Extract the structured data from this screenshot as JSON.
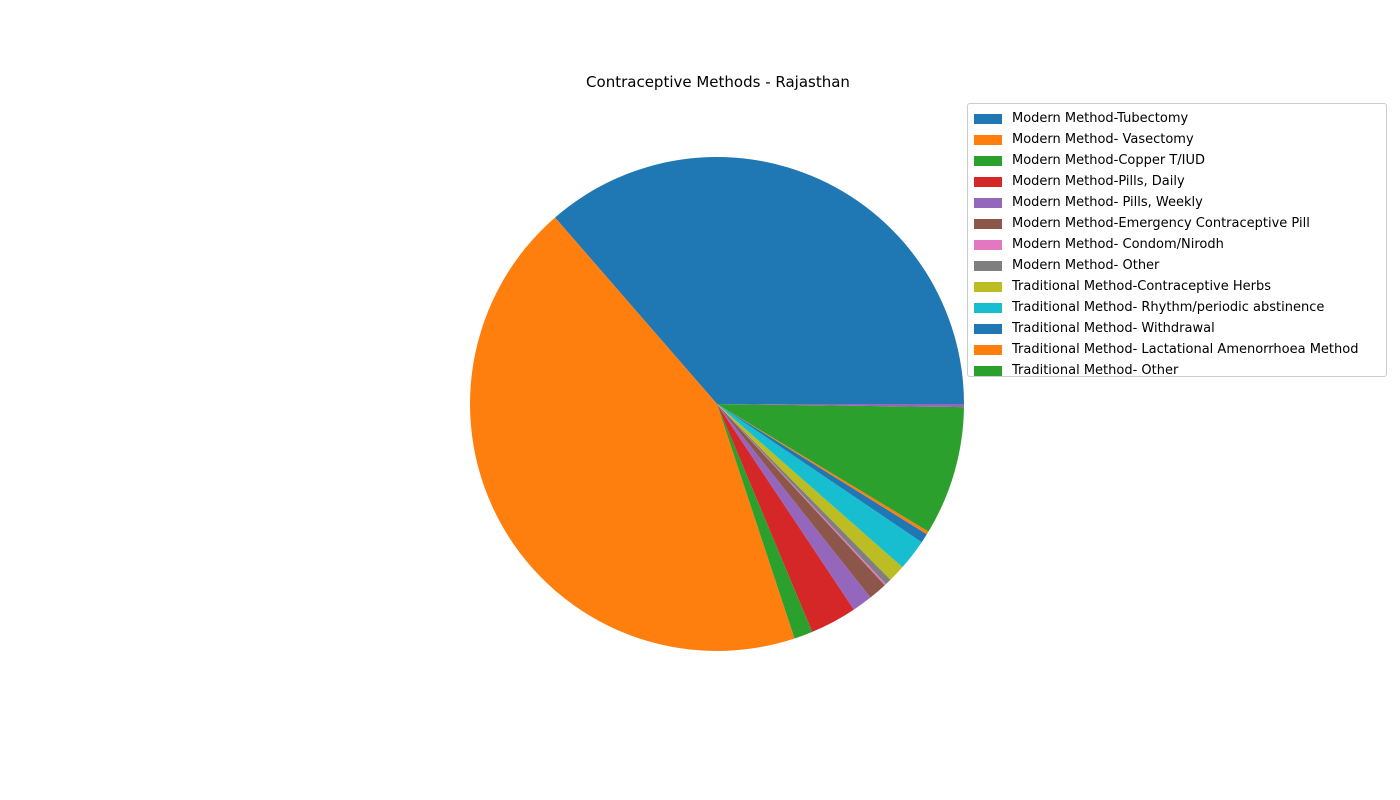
{
  "chart_data": {
    "type": "pie",
    "title": "Contraceptive Methods - Rajasthan",
    "legend_position": "top-right",
    "start_angle_deg": 0,
    "direction": "counterclockwise",
    "slices": [
      {
        "label": "Modern Method-Tubectomy",
        "value": 35.8,
        "color": "#1f77b4"
      },
      {
        "label": "Modern Method- Vasectomy",
        "value": 43.0,
        "color": "#ff7f0e"
      },
      {
        "label": "Modern Method-Copper T/IUD",
        "value": 1.2,
        "color": "#2ca02c"
      },
      {
        "label": "Modern Method-Pills, Daily",
        "value": 3.0,
        "color": "#d62728"
      },
      {
        "label": "Modern Method- Pills, Weekly",
        "value": 1.3,
        "color": "#9467bd"
      },
      {
        "label": "Modern Method-Emergency Contraceptive Pill",
        "value": 1.2,
        "color": "#8c564b"
      },
      {
        "label": "Modern Method- Condom/Nirodh",
        "value": 0.1,
        "color": "#e377c2"
      },
      {
        "label": "Modern Method- Other",
        "value": 0.4,
        "color": "#7f7f7f"
      },
      {
        "label": "Traditional Method-Contraceptive Herbs",
        "value": 1.1,
        "color": "#bcbd22"
      },
      {
        "label": "Traditional Method- Rhythm/periodic abstinence",
        "value": 2.0,
        "color": "#17becf"
      },
      {
        "label": "Traditional Method- Withdrawal",
        "value": 0.6,
        "color": "#1f77b4"
      },
      {
        "label": "Traditional Method- Lactational Amenorrhoea Method",
        "value": 0.2,
        "color": "#ff7f0e"
      },
      {
        "label": "Traditional Method- Other",
        "value": 8.3,
        "color": "#2ca02c"
      },
      {
        "label": "",
        "value": 0.2,
        "color": "#9467bd"
      }
    ]
  }
}
